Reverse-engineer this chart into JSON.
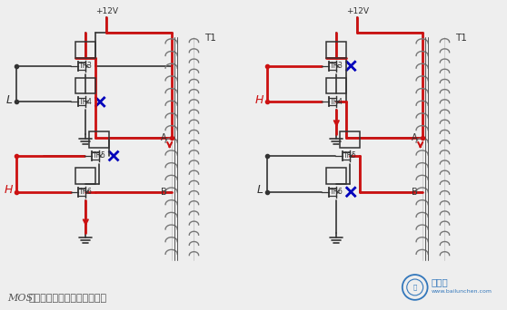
{
  "bg_color": "#eeeeee",
  "dark": "#333333",
  "red": "#cc1111",
  "blue": "#0000bb",
  "coil_col": "#777777",
  "lw_main": 1.2,
  "lw_active": 2.0,
  "caption": "场效应管电路部分的工作过程",
  "caption_italic": "MOS",
  "vcc_label": "+12V",
  "t1_label": "T1",
  "tr3_label": "TR3",
  "tr4_label": "TR4",
  "tr5_label": "TR5",
  "tr6_label": "TR6",
  "a_label": "A",
  "b_label": "B"
}
